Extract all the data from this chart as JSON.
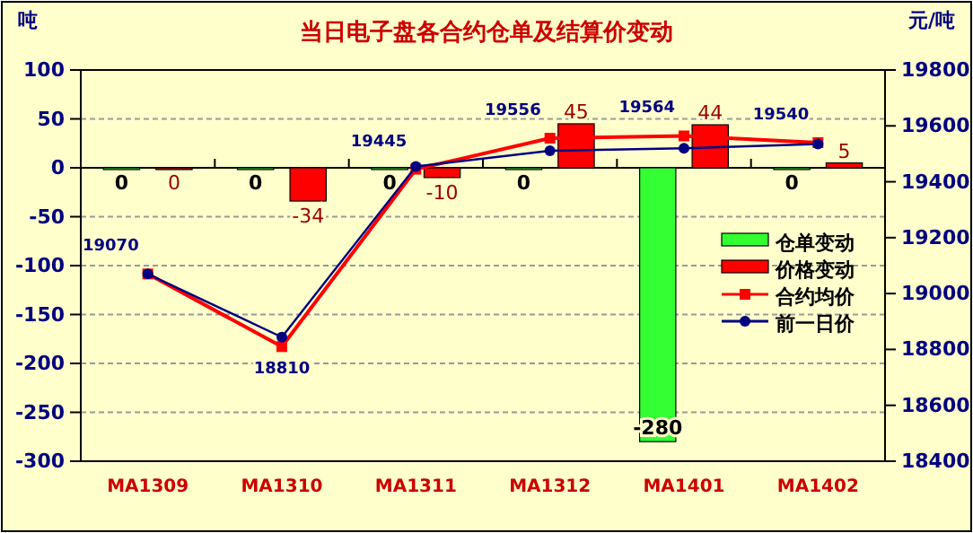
{
  "chart_data": {
    "type": "bar",
    "title": "当日电子盘各合约仓单及结算价变动",
    "ylabel": "吨",
    "y2label": "元/吨",
    "categories": [
      "MA1309",
      "MA1310",
      "MA1311",
      "MA1312",
      "MA1401",
      "MA1402"
    ],
    "series": [
      {
        "name": "仓单变动",
        "color": "#33ff33",
        "values": [
          0,
          0,
          0,
          0,
          -280,
          0
        ],
        "value_labels": [
          "0",
          "0",
          "0",
          "0",
          "-280",
          "0"
        ]
      },
      {
        "name": "价格变动",
        "color": "#ff0000",
        "values": [
          0,
          -34,
          -10,
          45,
          44,
          5
        ],
        "value_labels": [
          "0",
          "-34",
          "-10",
          "45",
          "44",
          "5"
        ]
      },
      {
        "name": "合约均价",
        "type": "line",
        "axis": "y2",
        "color": "#ff0000",
        "marker": "square",
        "values": [
          19070,
          18810,
          19445,
          19556,
          19564,
          19540
        ],
        "value_labels": [
          "19070",
          "18810",
          "19445",
          "19556",
          "19564",
          "19540"
        ]
      },
      {
        "name": "前一日价",
        "type": "line",
        "axis": "y2",
        "color": "#000080",
        "marker": "circle",
        "values": [
          19070,
          18844,
          19455,
          19511,
          19520,
          19535
        ]
      }
    ],
    "ylim": [
      -300,
      100
    ],
    "yticks": [
      -300,
      -250,
      -200,
      -150,
      -100,
      -50,
      0,
      50,
      100
    ],
    "y2lim": [
      18400,
      19800
    ],
    "y2ticks": [
      18400,
      18600,
      18800,
      19000,
      19200,
      19400,
      19600,
      19800
    ],
    "grid": "y",
    "legend": "right"
  }
}
